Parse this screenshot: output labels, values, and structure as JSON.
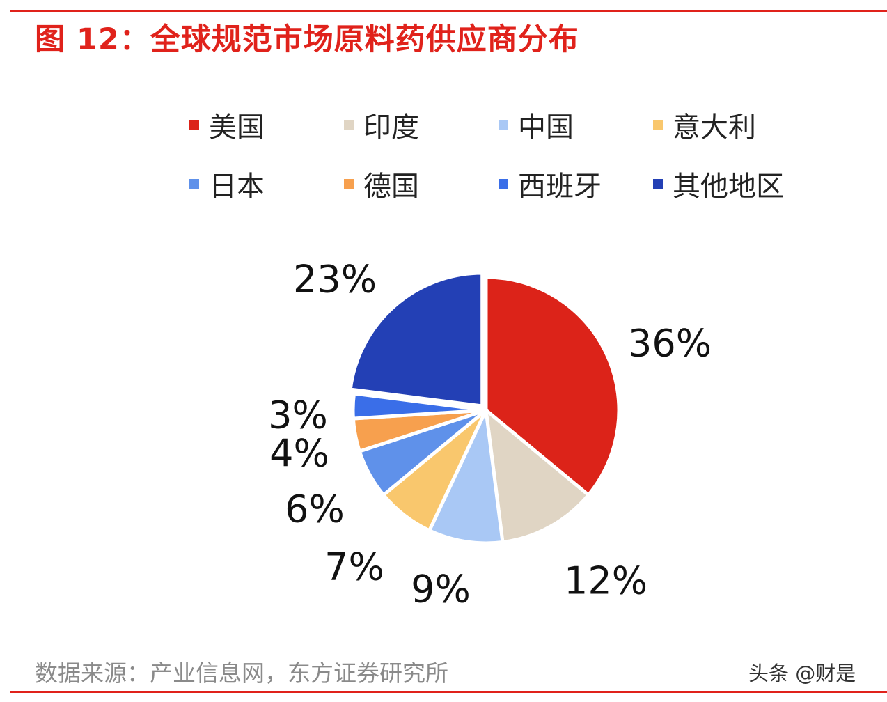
{
  "title": "图 12：全球规范市场原料药供应商分布",
  "source": "数据来源：产业信息网，东方证券研究所",
  "watermark": "头条 @财是",
  "chart_data": {
    "type": "pie",
    "title": "图 12：全球规范市场原料药供应商分布",
    "legend_placement": "top",
    "categories": [
      "美国",
      "印度",
      "中国",
      "意大利",
      "日本",
      "德国",
      "西班牙",
      "其他地区"
    ],
    "values": [
      36,
      12,
      9,
      7,
      6,
      4,
      3,
      23
    ],
    "labels": [
      "36%",
      "12%",
      "9%",
      "7%",
      "6%",
      "4%",
      "3%",
      "23%"
    ],
    "colors": [
      "#dc2319",
      "#e0d5c4",
      "#a9c8f5",
      "#f9c76d",
      "#5f91ea",
      "#f7a04e",
      "#3a6ee8",
      "#2340b5"
    ],
    "exploded": [
      "其他地区"
    ],
    "start_angle_deg": 0,
    "direction": "clockwise"
  }
}
